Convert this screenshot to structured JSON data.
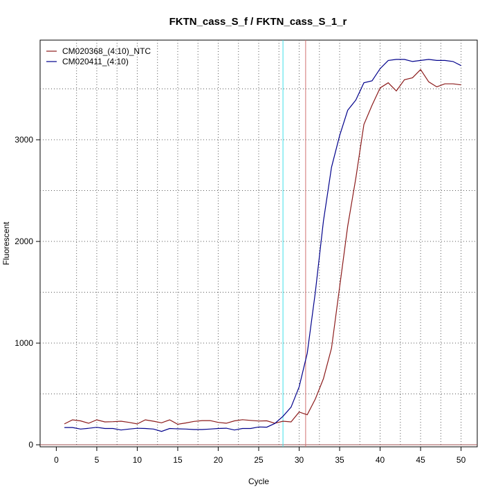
{
  "chart_data": {
    "type": "line",
    "title": "FKTN_cass_S_f / FKTN_cass_S_1_r",
    "xlabel": "Cycle",
    "ylabel": "Fluorescent",
    "xlim": [
      -2,
      52
    ],
    "ylim": [
      -20,
      3980
    ],
    "xticks": [
      "0",
      "5",
      "10",
      "15",
      "20",
      "25",
      "30",
      "35",
      "40",
      "45",
      "50"
    ],
    "yticks": [
      "0",
      "1000",
      "2000",
      "3000"
    ],
    "grid": true,
    "legend_position": "top-left",
    "threshold_color": "#a05050",
    "vertical_markers": [
      {
        "x": 28.0,
        "color": "#40e0e8"
      },
      {
        "x": 30.8,
        "color": "#d07070"
      }
    ],
    "x": [
      1,
      2,
      3,
      4,
      5,
      6,
      7,
      8,
      9,
      10,
      11,
      12,
      13,
      14,
      15,
      16,
      17,
      18,
      19,
      20,
      21,
      22,
      23,
      24,
      25,
      26,
      27,
      28,
      29,
      30,
      31,
      32,
      33,
      34,
      35,
      36,
      37,
      38,
      39,
      40,
      41,
      42,
      43,
      44,
      45,
      46,
      47,
      48,
      49,
      50
    ],
    "series": [
      {
        "name": "CM020368_(4:10)_NTC",
        "color": "#8b1a1a",
        "values": [
          205,
          245,
          235,
          212,
          245,
          225,
          227,
          232,
          220,
          205,
          245,
          232,
          216,
          245,
          202,
          215,
          230,
          238,
          238,
          220,
          212,
          235,
          247,
          240,
          234,
          236,
          212,
          232,
          225,
          322,
          295,
          450,
          650,
          950,
          1550,
          2150,
          2620,
          3150,
          3340,
          3510,
          3560,
          3480,
          3590,
          3610,
          3690,
          3570,
          3520,
          3550,
          3550,
          3540
        ]
      },
      {
        "name": "CM020411_(4:10)",
        "color": "#00008b",
        "values": [
          170,
          170,
          155,
          162,
          172,
          160,
          160,
          145,
          155,
          162,
          160,
          155,
          132,
          160,
          157,
          155,
          150,
          150,
          155,
          160,
          163,
          145,
          160,
          160,
          175,
          173,
          210,
          280,
          370,
          570,
          900,
          1500,
          2200,
          2730,
          3040,
          3290,
          3390,
          3560,
          3580,
          3700,
          3780,
          3790,
          3790,
          3770,
          3780,
          3790,
          3780,
          3780,
          3770,
          3730
        ]
      }
    ]
  }
}
